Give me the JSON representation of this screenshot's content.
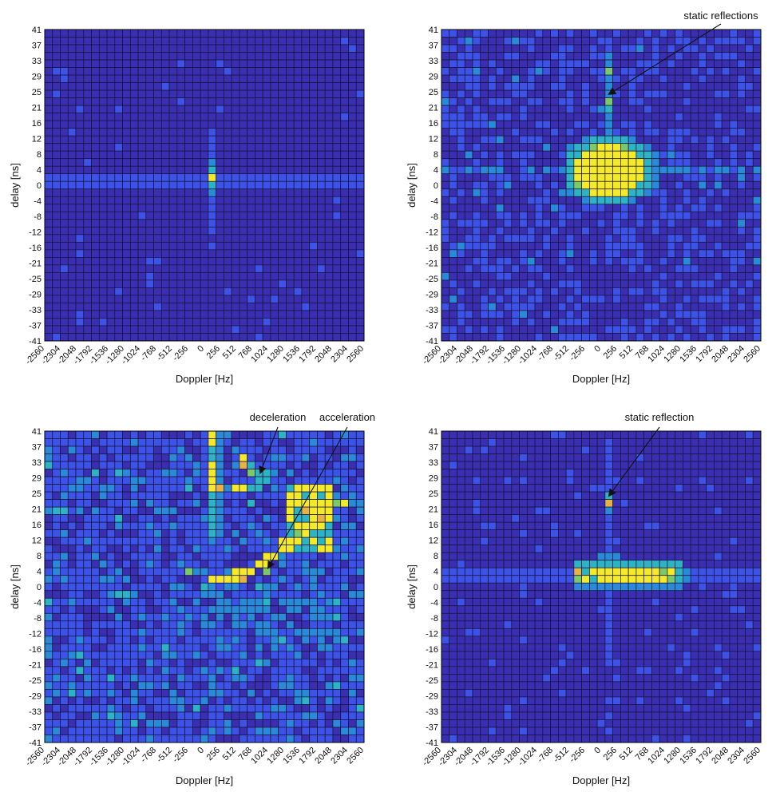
{
  "chart_data": [
    {
      "type": "heatmap",
      "xlabel": "Doppler [Hz]",
      "ylabel": "delay [ns]",
      "x_ticks": [
        "-2560",
        "-2304",
        "-2048",
        "-1792",
        "-1536",
        "-1280",
        "-1024",
        "-768",
        "-512",
        "-256",
        "0",
        "256",
        "512",
        "768",
        "1024",
        "1280",
        "1536",
        "1792",
        "2048",
        "2304",
        "2560"
      ],
      "y_ticks": [
        "41",
        "37",
        "33",
        "29",
        "25",
        "21",
        "16",
        "12",
        "8",
        "4",
        "0",
        "-4",
        "-8",
        "-12",
        "-16",
        "-21",
        "-25",
        "-29",
        "-33",
        "-37",
        "-41"
      ],
      "colormap": [
        "#3a2fb0",
        "#3d52e6",
        "#2b8ad8",
        "#2db3c4",
        "#7cc86a",
        "#e8b246",
        "#f5ea2a"
      ],
      "annotations": [],
      "hotspots": [
        {
          "doppler": 0,
          "delay": 2,
          "level": 6
        },
        {
          "doppler": 0,
          "delay": 4,
          "level": 3
        },
        {
          "doppler": 0,
          "delay": 0,
          "level": 3
        }
      ]
    },
    {
      "type": "heatmap",
      "xlabel": "Doppler [Hz]",
      "ylabel": "delay [ns]",
      "x_ticks": [
        "-2560",
        "-2304",
        "-2048",
        "-1792",
        "-1536",
        "-1280",
        "-1024",
        "-768",
        "-512",
        "-256",
        "0",
        "256",
        "512",
        "768",
        "1024",
        "1280",
        "1536",
        "1792",
        "2048",
        "2304",
        "2560"
      ],
      "y_ticks": [
        "41",
        "37",
        "33",
        "29",
        "25",
        "21",
        "16",
        "12",
        "8",
        "4",
        "0",
        "-4",
        "-8",
        "-12",
        "-16",
        "-21",
        "-25",
        "-29",
        "-33",
        "-37",
        "-41"
      ],
      "colormap": [
        "#3a2fb0",
        "#3d52e6",
        "#2b8ad8",
        "#2db3c4",
        "#7cc86a",
        "#e8b246",
        "#f5ea2a"
      ],
      "annotations": [
        {
          "text": "static reflections",
          "doppler": 128,
          "delay": 24
        }
      ],
      "hotspots": [
        {
          "doppler": 128,
          "delay": 31,
          "level": 4
        },
        {
          "doppler": 128,
          "delay": 23,
          "level": 4
        },
        {
          "doppler": 0,
          "delay": 2,
          "level": 6
        }
      ]
    },
    {
      "type": "heatmap",
      "xlabel": "Doppler [Hz]",
      "ylabel": "delay [ns]",
      "x_ticks": [
        "-2560",
        "-2304",
        "-2048",
        "-1792",
        "-1536",
        "-1280",
        "-1024",
        "-768",
        "-512",
        "-256",
        "0",
        "256",
        "512",
        "768",
        "1024",
        "1280",
        "1536",
        "1792",
        "2048",
        "2304",
        "2560"
      ],
      "y_ticks": [
        "41",
        "37",
        "33",
        "29",
        "25",
        "21",
        "16",
        "12",
        "8",
        "4",
        "0",
        "-4",
        "-8",
        "-12",
        "-16",
        "-21",
        "-25",
        "-29",
        "-33",
        "-37",
        "-41"
      ],
      "colormap": [
        "#3a2fb0",
        "#3d52e6",
        "#2b8ad8",
        "#2db3c4",
        "#7cc86a",
        "#e8b246",
        "#f5ea2a"
      ],
      "annotations": [
        {
          "text": "deceleration",
          "doppler": 896,
          "delay": 30
        },
        {
          "text": "acceleration",
          "doppler": 1024,
          "delay": 5
        }
      ],
      "hotspots": [
        {
          "doppler": 0,
          "delay": 41,
          "level": 6
        },
        {
          "doppler": 256,
          "delay": 2,
          "level": 6
        },
        {
          "doppler": 1536,
          "delay": 16,
          "level": 6
        }
      ]
    },
    {
      "type": "heatmap",
      "xlabel": "Doppler [Hz]",
      "ylabel": "delay [ns]",
      "x_ticks": [
        "-2560",
        "-2304",
        "-2048",
        "-1792",
        "-1536",
        "-1280",
        "-1024",
        "-768",
        "-512",
        "-256",
        "0",
        "256",
        "512",
        "768",
        "1024",
        "1280",
        "1536",
        "1792",
        "2048",
        "2304",
        "2560"
      ],
      "y_ticks": [
        "41",
        "37",
        "33",
        "29",
        "25",
        "21",
        "16",
        "12",
        "8",
        "4",
        "0",
        "-4",
        "-8",
        "-12",
        "-16",
        "-21",
        "-25",
        "-29",
        "-33",
        "-37",
        "-41"
      ],
      "colormap": [
        "#3a2fb0",
        "#3d52e6",
        "#2b8ad8",
        "#2db3c4",
        "#7cc86a",
        "#e8b246",
        "#f5ea2a"
      ],
      "annotations": [
        {
          "text": "static reflection",
          "doppler": 128,
          "delay": 24
        }
      ],
      "hotspots": [
        {
          "doppler": 128,
          "delay": 24,
          "level": 5
        },
        {
          "doppler": -640,
          "delay": 2,
          "level": 5
        },
        {
          "doppler": 512,
          "delay": 2,
          "level": 6
        }
      ]
    }
  ]
}
